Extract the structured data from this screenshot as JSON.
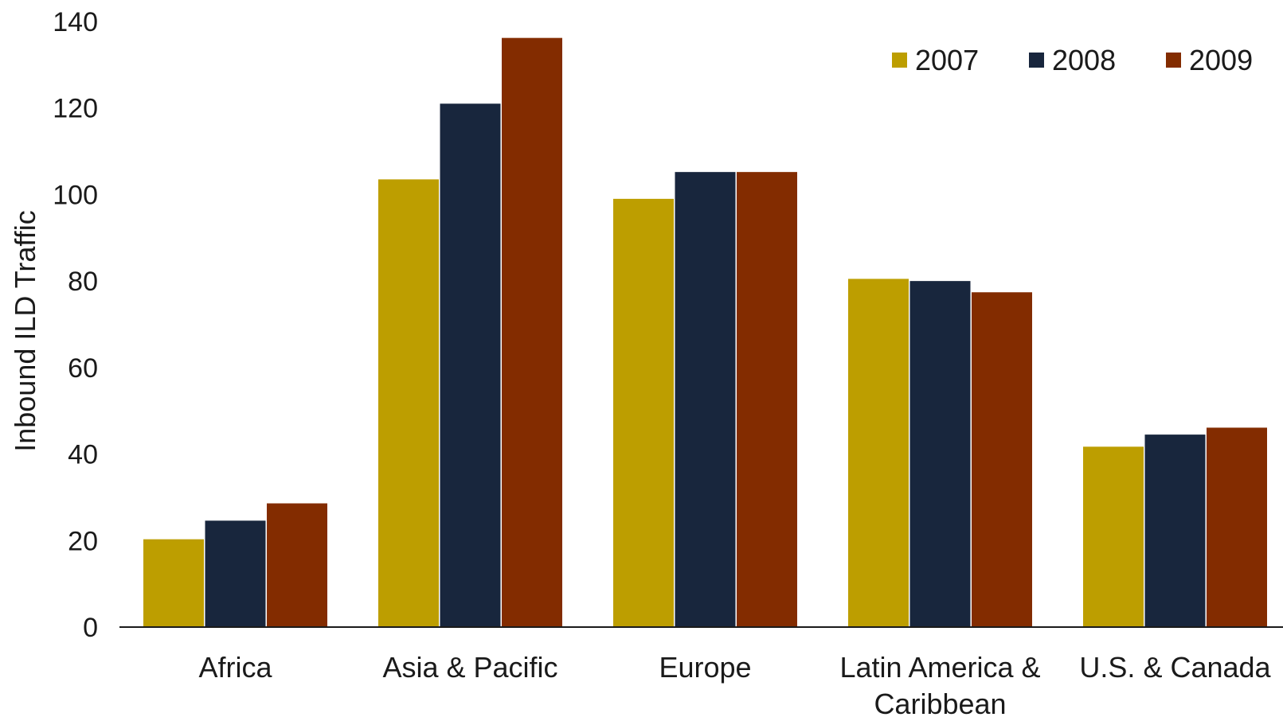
{
  "chart_data": {
    "type": "bar",
    "ylabel": "Inbound ILD Traffic",
    "xlabel": "",
    "ylim": [
      0,
      140
    ],
    "yticks": [
      0,
      20,
      40,
      60,
      80,
      100,
      120,
      140
    ],
    "grid": false,
    "legend_position": "top-right",
    "categories": [
      [
        "Africa"
      ],
      [
        "Asia & Pacific"
      ],
      [
        "Europe"
      ],
      [
        "Latin America &",
        "Caribbean"
      ],
      [
        "U.S. & Canada"
      ]
    ],
    "series": [
      {
        "name": "2007",
        "color": "#BD9E00",
        "values": [
          20.3,
          103.5,
          99,
          80.5,
          41.7
        ]
      },
      {
        "name": "2008",
        "color": "#18263D",
        "values": [
          24.6,
          121,
          105.2,
          80,
          44.5
        ]
      },
      {
        "name": "2009",
        "color": "#832C00",
        "values": [
          28.6,
          136.2,
          105.2,
          77.4,
          46.1
        ]
      }
    ]
  }
}
